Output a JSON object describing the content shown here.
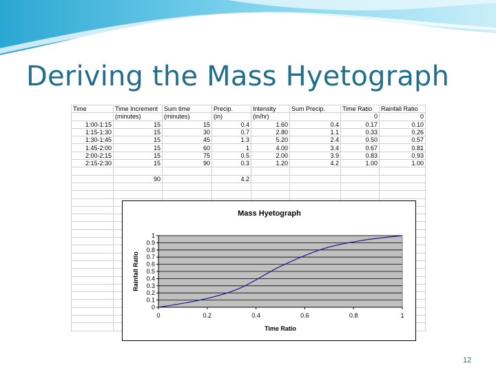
{
  "slide": {
    "title": "Deriving the Mass Hyetograph",
    "page_number": "12"
  },
  "table": {
    "header_row1": [
      "Time",
      "Time Increment",
      "Sum time",
      "Precip.",
      "Intensity",
      "Sum Precip.",
      "Time Ratio",
      "Rainfall Ratio"
    ],
    "header_row2": [
      "",
      "(minutes)",
      "(minutes)",
      "(in)",
      "(in/hr)",
      "",
      "0",
      "0"
    ],
    "rows": [
      [
        "1:00-1:15",
        "15",
        "15",
        "0.4",
        "1.60",
        "0.4",
        "0.17",
        "0.10"
      ],
      [
        "1:15-1:30",
        "15",
        "30",
        "0.7",
        "2.80",
        "1.1",
        "0.33",
        "0.26"
      ],
      [
        "1:30-1:45",
        "15",
        "45",
        "1.3",
        "5.20",
        "2.4",
        "0.50",
        "0.57"
      ],
      [
        "1:45-2:00",
        "15",
        "60",
        "1",
        "4.00",
        "3.4",
        "0.67",
        "0.81"
      ],
      [
        "2:00-2:15",
        "15",
        "75",
        "0.5",
        "2.00",
        "3.9",
        "0.83",
        "0.93"
      ],
      [
        "2:15-2:30",
        "15",
        "90",
        "0.3",
        "1.20",
        "4.2",
        "1.00",
        "1.00"
      ]
    ],
    "totals_row": [
      "",
      "90",
      "",
      "4.2",
      "",
      "",
      "",
      ""
    ]
  },
  "chart_data": {
    "type": "line",
    "title": "Mass Hyetograph",
    "xlabel": "Time Ratio",
    "ylabel": "Rainfall Ratio",
    "xlim": [
      0,
      1
    ],
    "ylim": [
      0,
      1
    ],
    "x_ticks": [
      "0",
      "0.2",
      "0.4",
      "0.6",
      "0.8",
      "1"
    ],
    "y_ticks": [
      "0",
      "0.1",
      "0.2",
      "0.3",
      "0.4",
      "0.5",
      "0.6",
      "0.7",
      "0.8",
      "0.9",
      "1"
    ],
    "grid": true,
    "plot_background": "#c0c0c0",
    "line_color": "#1a1a8c",
    "series": [
      {
        "x": [
          0,
          0.17,
          0.33,
          0.5,
          0.67,
          0.83,
          1.0
        ],
        "y": [
          0,
          0.1,
          0.26,
          0.57,
          0.81,
          0.93,
          1.0
        ]
      }
    ]
  },
  "colors": {
    "title": "#1f6e8c",
    "wave_light": "#bfe9f5",
    "wave_mid": "#5fc3e4",
    "wave_dark": "#1d95c5"
  }
}
